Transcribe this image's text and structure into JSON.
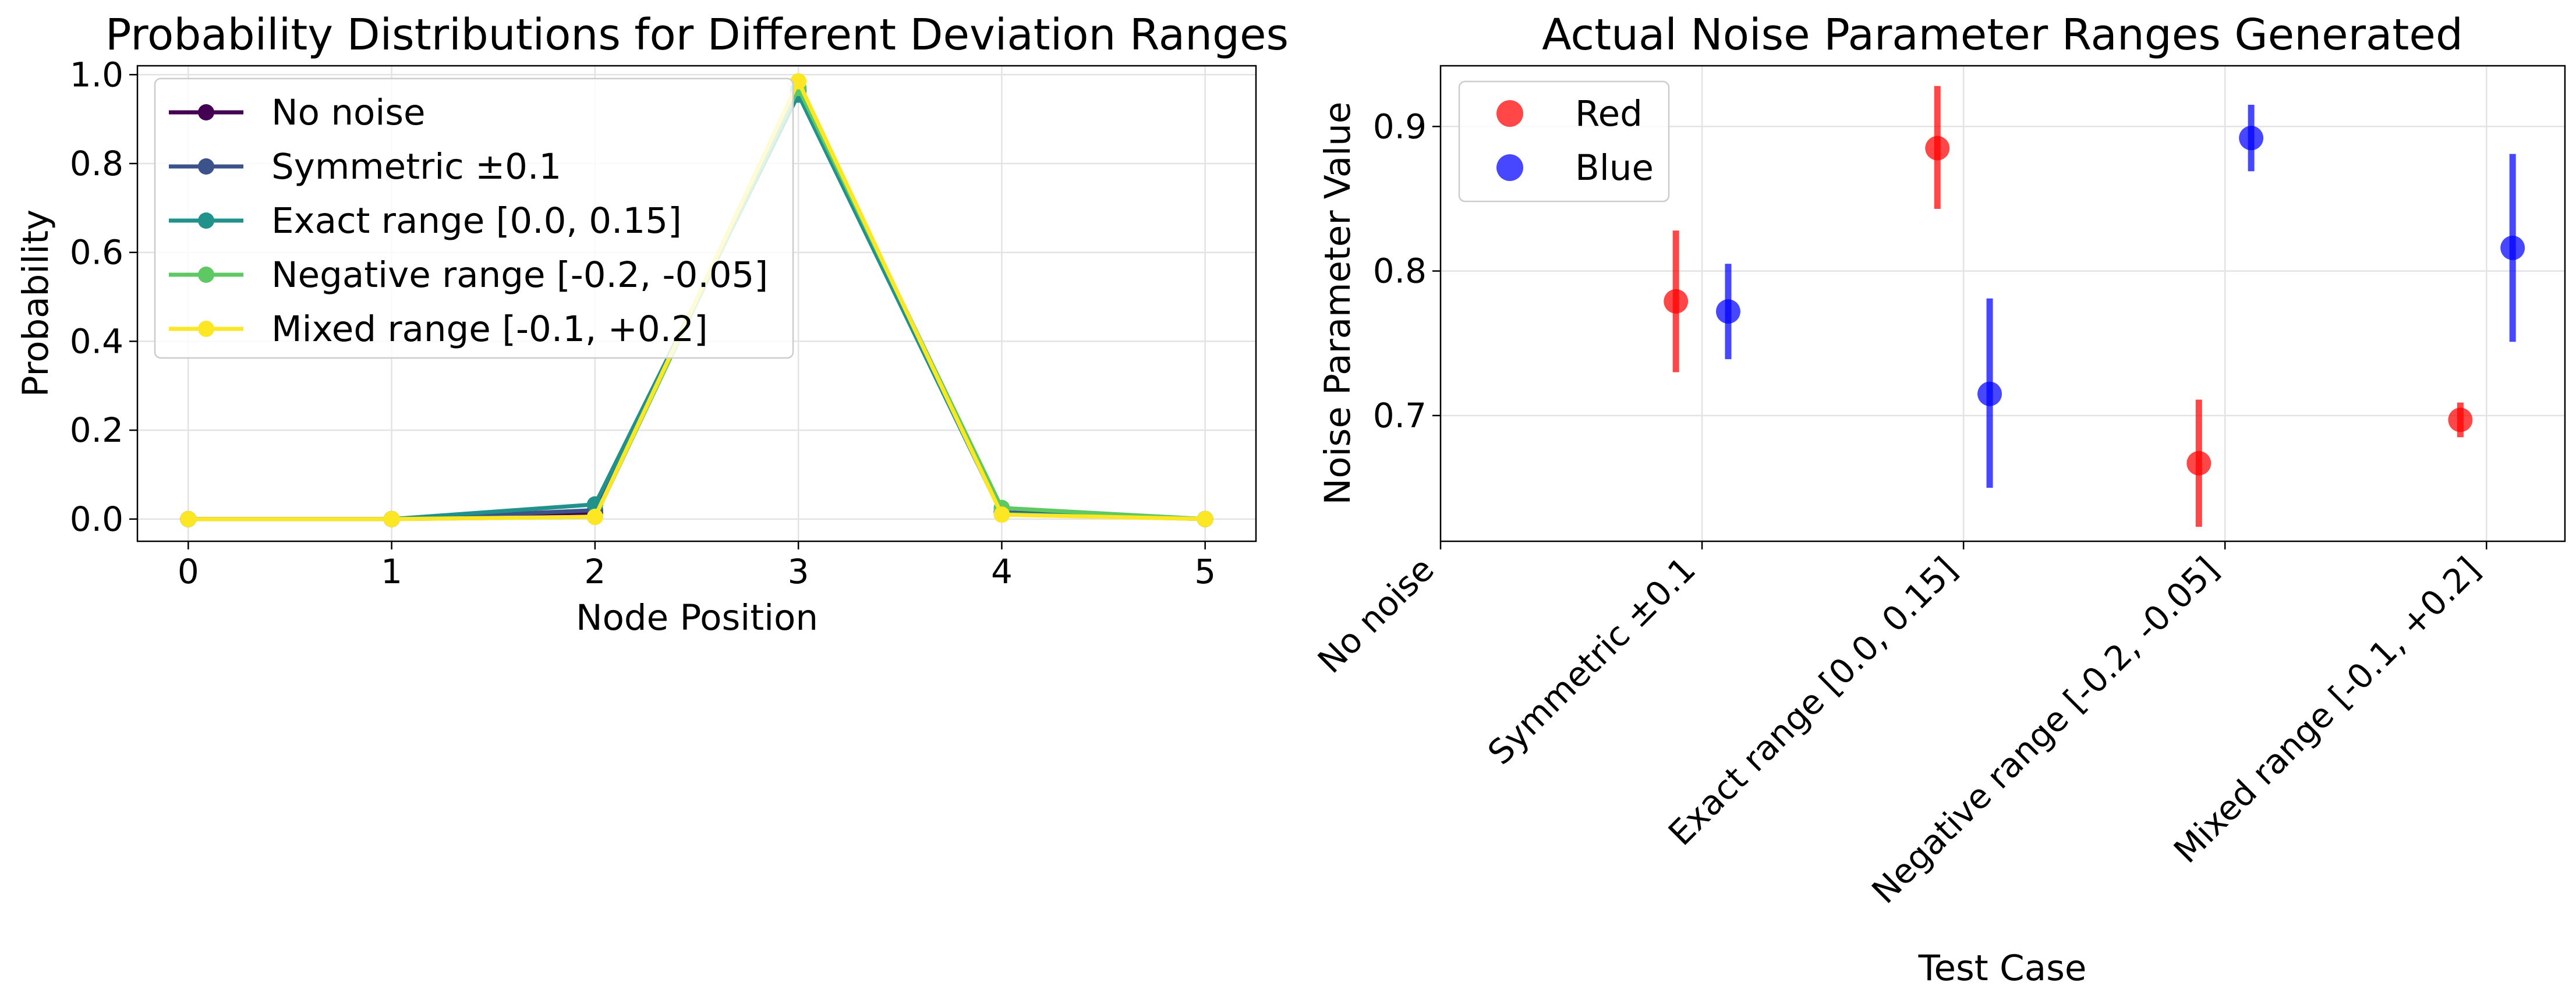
{
  "chart_data": [
    {
      "type": "line",
      "title": "Probability Distributions for Different Deviation Ranges",
      "xlabel": "Node Position",
      "ylabel": "Probability",
      "x": [
        0,
        1,
        2,
        3,
        4,
        5
      ],
      "xlim": [
        -0.25,
        5.25
      ],
      "ylim": [
        -0.05,
        1.02
      ],
      "xticks": [
        "0",
        "1",
        "2",
        "3",
        "4",
        "5"
      ],
      "yticks": [
        "0.0",
        "0.2",
        "0.4",
        "0.6",
        "0.8",
        "1.0"
      ],
      "grid": true,
      "legend_position": "upper left",
      "series": [
        {
          "name": "No noise",
          "color": "#440154",
          "values": [
            0.0,
            0.0,
            0.015,
            0.97,
            0.015,
            0.0
          ]
        },
        {
          "name": "Symmetric ±0.1",
          "color": "#3b528b",
          "values": [
            0.0,
            0.0,
            0.02,
            0.965,
            0.015,
            0.0
          ]
        },
        {
          "name": "Exact range [0.0, 0.15]",
          "color": "#21918c",
          "values": [
            0.0,
            0.0,
            0.033,
            0.955,
            0.012,
            0.0
          ]
        },
        {
          "name": "Negative range [-0.2, -0.05]",
          "color": "#5ec962",
          "values": [
            0.0,
            0.0,
            0.005,
            0.97,
            0.025,
            0.0
          ]
        },
        {
          "name": "Mixed range [-0.1, +0.2]",
          "color": "#fde725",
          "values": [
            0.0,
            0.0,
            0.005,
            0.985,
            0.01,
            0.0
          ]
        }
      ]
    },
    {
      "type": "scatter",
      "title": "Actual Noise Parameter Ranges Generated",
      "xlabel": "Test Case",
      "ylabel": "Noise Parameter Value",
      "categories": [
        "No noise",
        "Symmetric ±0.1",
        "Exact range [0.0, 0.15]",
        "Negative range [-0.2, -0.05]",
        "Mixed range [-0.1, +0.2]"
      ],
      "xlim": [
        0,
        4.3
      ],
      "ylim": [
        0.613,
        0.942
      ],
      "yticks": [
        "0.7",
        "0.8",
        "0.9"
      ],
      "grid": true,
      "legend_position": "upper left",
      "series": [
        {
          "name": "Red",
          "color": "#ff0000",
          "x": [
            0.9,
            1.9,
            2.9,
            3.9
          ],
          "values": [
            0.779,
            0.885,
            0.667,
            0.697
          ],
          "low": [
            0.73,
            0.843,
            0.623,
            0.685
          ],
          "high": [
            0.828,
            0.928,
            0.711,
            0.709
          ]
        },
        {
          "name": "Blue",
          "color": "#0000ff",
          "x": [
            1.1,
            2.1,
            3.1,
            4.1
          ],
          "values": [
            0.772,
            0.715,
            0.892,
            0.816
          ],
          "low": [
            0.739,
            0.65,
            0.869,
            0.751
          ],
          "high": [
            0.805,
            0.781,
            0.915,
            0.881
          ]
        }
      ]
    }
  ]
}
